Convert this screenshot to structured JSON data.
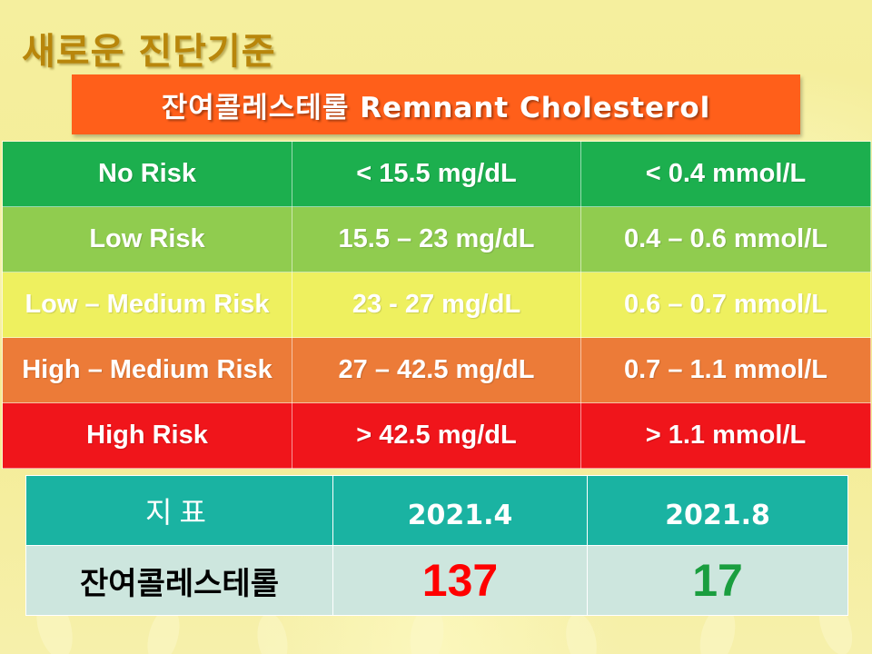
{
  "slide": {
    "title": "새로운 진단기준",
    "banner": "잔여콜레스테롤 Remnant Cholesterol"
  },
  "risk_table": {
    "rows": [
      {
        "risk": "No Risk",
        "mg": "< 15.5 mg/dL",
        "mmol": "< 0.4 mmol/L",
        "color": "#1caf4e"
      },
      {
        "risk": "Low Risk",
        "mg": "15.5 – 23 mg/dL",
        "mmol": "0.4 – 0.6 mmol/L",
        "color": "#90cc4f"
      },
      {
        "risk": "Low – Medium Risk",
        "mg": "23 - 27 mg/dL",
        "mmol": "0.6 – 0.7 mmol/L",
        "color": "#eef05f"
      },
      {
        "risk": "High – Medium Risk",
        "mg": "27 – 42.5 mg/dL",
        "mmol": "0.7 – 1.1 mmol/L",
        "color": "#ec7b38"
      },
      {
        "risk": "High Risk",
        "mg": "> 42.5 mg/dL",
        "mmol": "> 1.1 mmol/L",
        "color": "#f0151b"
      }
    ]
  },
  "result_table": {
    "header": {
      "label": "지표",
      "col1": "2021.4",
      "col2": "2021.8"
    },
    "row": {
      "label": "잔여콜레스테롤",
      "val1": "137",
      "val2": "17"
    },
    "colors": {
      "header_bg": "#1ab3a2",
      "row_bg": "#cde6de",
      "val1": "#ff0000",
      "val2": "#1a9e3f"
    }
  }
}
